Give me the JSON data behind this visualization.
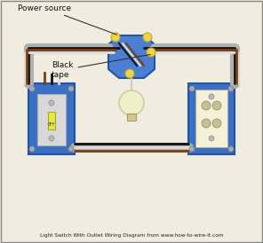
{
  "bg_color": "#f0ede0",
  "border_color": "#888888",
  "title": "Light Switch With Outlet Wiring Diagram",
  "subtitle": "from www.how-to-wire-it.com",
  "colors": {
    "junction_box": "#4a7fd4",
    "switch_box": "#3a6fc4",
    "outlet_box": "#3a6fc4",
    "wire_black": "#111111",
    "wire_white": "#dddddd",
    "wire_brown": "#7a4010",
    "wire_gray": "#aaaaaa",
    "conduit": "#b0b0b0",
    "connector_yellow": "#e8d44d",
    "light_bulb": "#f0f0c8",
    "switch_body": "#e0e0e0",
    "outlet_body": "#f5f0d8",
    "screw": "#aaaaaa"
  },
  "annotations": {
    "power_source_text": "Power source",
    "black_tape_text": "Black\ntape"
  }
}
